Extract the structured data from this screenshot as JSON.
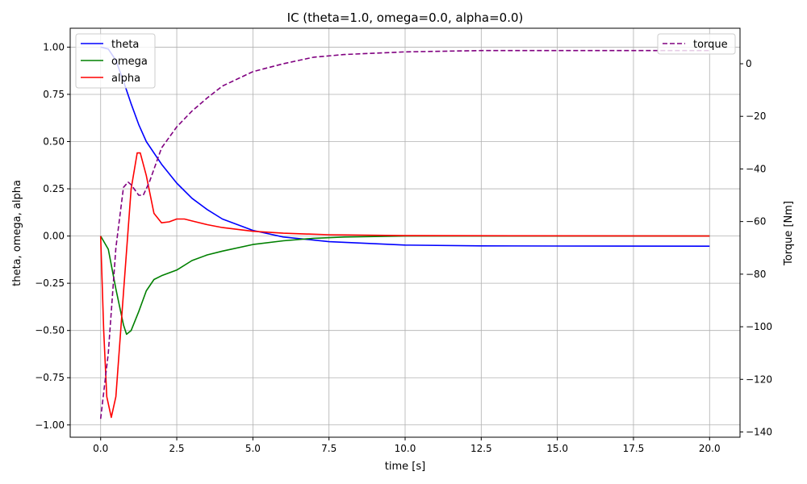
{
  "chart_data": {
    "type": "line",
    "title": "IC (theta=1.0, omega=0.0, alpha=0.0)",
    "xlabel": "time [s]",
    "ylabel": "theta, omega, alpha",
    "y2label": "Torque [Nm]",
    "xlim": [
      -1,
      21
    ],
    "ylim": [
      -1.065,
      1.1
    ],
    "y2lim": [
      -142,
      13.5
    ],
    "xticks": [
      "0.0",
      "2.5",
      "5.0",
      "7.5",
      "10.0",
      "12.5",
      "15.0",
      "17.5",
      "20.0"
    ],
    "yticks": [
      "1.00",
      "0.75",
      "0.50",
      "0.25",
      "0.00",
      "−0.25",
      "−0.50",
      "−0.75",
      "−1.00"
    ],
    "y2ticks": [
      "0",
      "−20",
      "−40",
      "−60",
      "−80",
      "−100",
      "−120",
      "−140"
    ],
    "grid": true,
    "legend_left": "top-left",
    "legend_right": "top-right",
    "series": [
      {
        "name": "theta",
        "axis": "left",
        "color": "#0000ff",
        "dash": false,
        "x": [
          0,
          0.25,
          0.5,
          0.75,
          1,
          1.25,
          1.5,
          2,
          2.5,
          3,
          3.5,
          4,
          5,
          6,
          7.5,
          10,
          12.5,
          15,
          20
        ],
        "y": [
          1,
          0.99,
          0.93,
          0.82,
          0.7,
          0.59,
          0.5,
          0.38,
          0.28,
          0.2,
          0.14,
          0.09,
          0.03,
          -0.005,
          -0.03,
          -0.048,
          -0.052,
          -0.053,
          -0.054
        ]
      },
      {
        "name": "omega",
        "axis": "left",
        "color": "#008000",
        "dash": false,
        "x": [
          0,
          0.25,
          0.5,
          0.75,
          0.85,
          1,
          1.25,
          1.5,
          1.75,
          2,
          2.5,
          3,
          3.5,
          4,
          5,
          6,
          7,
          8,
          10,
          20
        ],
        "y": [
          0,
          -0.07,
          -0.28,
          -0.47,
          -0.52,
          -0.5,
          -0.4,
          -0.29,
          -0.23,
          -0.21,
          -0.18,
          -0.13,
          -0.1,
          -0.08,
          -0.045,
          -0.025,
          -0.012,
          -0.005,
          0,
          0
        ]
      },
      {
        "name": "alpha",
        "axis": "left",
        "color": "#ff0000",
        "dash": false,
        "x": [
          0,
          0.1,
          0.2,
          0.35,
          0.5,
          0.75,
          1,
          1.2,
          1.3,
          1.5,
          1.75,
          2,
          2.25,
          2.5,
          2.75,
          3,
          3.5,
          4,
          5,
          6,
          7.5,
          10,
          20
        ],
        "y": [
          0,
          -0.5,
          -0.85,
          -0.96,
          -0.85,
          -0.3,
          0.25,
          0.44,
          0.44,
          0.32,
          0.12,
          0.07,
          0.075,
          0.09,
          0.09,
          0.08,
          0.06,
          0.045,
          0.025,
          0.015,
          0.007,
          0.002,
          0
        ]
      },
      {
        "name": "torque",
        "axis": "right",
        "color": "#800080",
        "dash": true,
        "x": [
          0,
          0.25,
          0.5,
          0.75,
          0.9,
          1,
          1.25,
          1.4,
          1.6,
          2,
          2.5,
          3,
          3.5,
          4,
          5,
          6,
          7,
          8,
          10,
          12.5,
          20
        ],
        "y": [
          -135,
          -110,
          -70,
          -47,
          -45,
          -46,
          -50,
          -50,
          -45,
          -32,
          -24,
          -18,
          -13,
          -8.5,
          -3,
          0,
          2.5,
          3.5,
          4.5,
          5,
          5
        ]
      }
    ]
  }
}
